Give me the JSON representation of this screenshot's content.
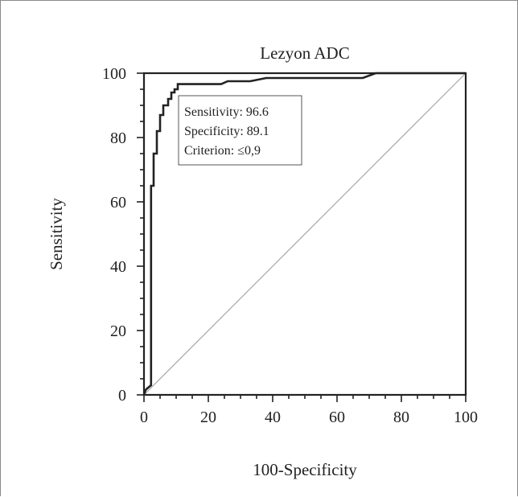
{
  "chart_data": {
    "type": "line",
    "title": "Lezyon ADC",
    "xlabel": "100-Specificity",
    "ylabel": "Sensitivity",
    "xlim": [
      0,
      100
    ],
    "ylim": [
      0,
      100
    ],
    "x_ticks": [
      0,
      20,
      40,
      60,
      80,
      100
    ],
    "y_ticks": [
      0,
      20,
      40,
      60,
      80,
      100
    ],
    "grid": false,
    "series": [
      {
        "values": [
          [
            0,
            0
          ],
          [
            0.5,
            1.5
          ],
          [
            1,
            2
          ],
          [
            2.2,
            3
          ],
          [
            2.2,
            65
          ],
          [
            3,
            65
          ],
          [
            3,
            75
          ],
          [
            4,
            75
          ],
          [
            4,
            82
          ],
          [
            5,
            82
          ],
          [
            5,
            87
          ],
          [
            6,
            87
          ],
          [
            6,
            90
          ],
          [
            7.5,
            90
          ],
          [
            7.5,
            92
          ],
          [
            8.5,
            92
          ],
          [
            8.5,
            94
          ],
          [
            9.5,
            94
          ],
          [
            9.5,
            95
          ],
          [
            10.5,
            95
          ],
          [
            10.5,
            96.6
          ],
          [
            24,
            96.6
          ],
          [
            26,
            97.5
          ],
          [
            33,
            97.5
          ],
          [
            38,
            98.5
          ],
          [
            68,
            98.5
          ],
          [
            72,
            100
          ],
          [
            100,
            100
          ]
        ]
      },
      {
        "values": [
          [
            0,
            0
          ],
          [
            100,
            100
          ]
        ]
      }
    ],
    "annotation": {
      "lines": [
        "Sensitivity: 96.6",
        "Specificity: 89.1",
        "Criterion: ≤0,9"
      ]
    }
  }
}
